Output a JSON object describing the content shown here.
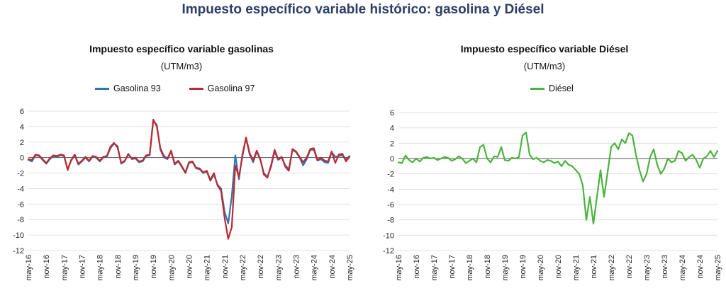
{
  "page": {
    "title": "Impuesto específico variable histórico: gasolina y Diésel"
  },
  "chart_data": [
    {
      "type": "line",
      "title": "Impuesto específico variable gasolinas",
      "subtitle": "(UTM/m3)",
      "ylim": [
        -12,
        6
      ],
      "yticks": [
        -12,
        -10,
        -8,
        -6,
        -4,
        -2,
        0,
        2,
        4,
        6
      ],
      "categories": [
        "may-16",
        "nov-16",
        "may-17",
        "nov-17",
        "may-18",
        "nov-18",
        "may-19",
        "nov-19",
        "may-20",
        "nov-20",
        "may-21",
        "nov-21",
        "may-22",
        "nov-22",
        "may-23",
        "nov-23",
        "may-24",
        "nov-24",
        "may-25"
      ],
      "legend_position": "top",
      "grid": true,
      "series": [
        {
          "name": "Gasolina 93",
          "color": "#2e75b6",
          "x": [
            0,
            0.2,
            0.4,
            0.6,
            0.8,
            1.0,
            1.2,
            1.4,
            1.6,
            1.8,
            2.0,
            2.2,
            2.4,
            2.6,
            2.8,
            3.0,
            3.2,
            3.4,
            3.6,
            3.8,
            4.0,
            4.2,
            4.4,
            4.6,
            4.8,
            5.0,
            5.2,
            5.4,
            5.6,
            5.8,
            6.0,
            6.2,
            6.4,
            6.6,
            6.8,
            7.0,
            7.2,
            7.4,
            7.6,
            7.8,
            8.0,
            8.2,
            8.4,
            8.6,
            8.8,
            9.0,
            9.2,
            9.4,
            9.6,
            9.8,
            10.0,
            10.2,
            10.4,
            10.6,
            10.8,
            11.0,
            11.2,
            11.4,
            11.6,
            11.8,
            12.0,
            12.2,
            12.4,
            12.6,
            12.8,
            13.0,
            13.2,
            13.4,
            13.6,
            13.8,
            14.0,
            14.2,
            14.4,
            14.6,
            14.8,
            15.0,
            15.2,
            15.4,
            15.6,
            15.8,
            16.0,
            16.2,
            16.4,
            16.6,
            16.8,
            17.0,
            17.2,
            17.4,
            17.6,
            17.8,
            18.0
          ],
          "values": [
            -0.3,
            -0.5,
            0.3,
            0.2,
            -0.3,
            -0.8,
            -0.2,
            0.2,
            0.1,
            0.3,
            0.2,
            -1.5,
            -0.4,
            0.3,
            -0.9,
            -0.5,
            0.0,
            -0.5,
            0.1,
            0.0,
            -0.5,
            0.0,
            0.1,
            1.2,
            1.8,
            1.5,
            -0.8,
            -0.5,
            0.5,
            -0.2,
            -0.1,
            -0.6,
            -0.5,
            0.2,
            0.3,
            4.8,
            4.2,
            1.0,
            0.0,
            -0.2,
            0.8,
            -0.9,
            -0.5,
            -1.2,
            -2.0,
            -0.7,
            -0.6,
            -1.4,
            -1.5,
            -2.0,
            -1.8,
            -3.0,
            -2.2,
            -3.5,
            -4.0,
            -7.0,
            -8.5,
            -5.0,
            0.3,
            -2.8,
            0.5,
            2.5,
            0.4,
            -0.6,
            0.8,
            -0.3,
            -2.0,
            -2.5,
            -1.2,
            0.8,
            -0.3,
            0.0,
            -1.0,
            -1.5,
            1.0,
            0.7,
            0.0,
            -1.0,
            -0.2,
            1.0,
            1.0,
            -0.4,
            -0.2,
            -0.6,
            -0.7,
            0.7,
            0.1,
            0.2,
            0.3,
            -0.2,
            0.2
          ]
        },
        {
          "name": "Gasolina 97",
          "color": "#c0292e",
          "x": [
            0,
            0.2,
            0.4,
            0.6,
            0.8,
            1.0,
            1.2,
            1.4,
            1.6,
            1.8,
            2.0,
            2.2,
            2.4,
            2.6,
            2.8,
            3.0,
            3.2,
            3.4,
            3.6,
            3.8,
            4.0,
            4.2,
            4.4,
            4.6,
            4.8,
            5.0,
            5.2,
            5.4,
            5.6,
            5.8,
            6.0,
            6.2,
            6.4,
            6.6,
            6.8,
            7.0,
            7.2,
            7.4,
            7.6,
            7.8,
            8.0,
            8.2,
            8.4,
            8.6,
            8.8,
            9.0,
            9.2,
            9.4,
            9.6,
            9.8,
            10.0,
            10.2,
            10.4,
            10.6,
            10.8,
            11.0,
            11.2,
            11.4,
            11.6,
            11.8,
            12.0,
            12.2,
            12.4,
            12.6,
            12.8,
            13.0,
            13.2,
            13.4,
            13.6,
            13.8,
            14.0,
            14.2,
            14.4,
            14.6,
            14.8,
            15.0,
            15.2,
            15.4,
            15.6,
            15.8,
            16.0,
            16.2,
            16.4,
            16.6,
            16.8,
            17.0,
            17.2,
            17.4,
            17.6,
            17.8,
            18.0
          ],
          "values": [
            -0.2,
            -0.3,
            0.4,
            0.3,
            -0.2,
            -0.7,
            -0.1,
            0.3,
            0.2,
            0.4,
            0.3,
            -1.6,
            -0.3,
            0.4,
            -0.8,
            -0.4,
            0.1,
            -0.4,
            0.2,
            0.1,
            -0.4,
            0.1,
            0.2,
            1.4,
            1.9,
            1.3,
            -0.7,
            -0.4,
            0.4,
            -0.1,
            0.0,
            -0.5,
            -0.4,
            0.3,
            0.4,
            4.9,
            4.0,
            1.2,
            0.2,
            -0.1,
            0.9,
            -0.8,
            -0.4,
            -1.1,
            -1.9,
            -0.6,
            -0.5,
            -1.3,
            -1.4,
            -1.9,
            -1.7,
            -2.9,
            -2.0,
            -3.6,
            -4.3,
            -7.8,
            -10.5,
            -9.0,
            -1.0,
            -2.5,
            0.2,
            2.6,
            0.6,
            -0.4,
            0.9,
            -0.2,
            -2.2,
            -2.6,
            -1.0,
            1.0,
            -0.2,
            0.1,
            -1.2,
            -1.7,
            1.1,
            0.8,
            0.1,
            -0.6,
            0.0,
            1.1,
            1.2,
            -0.3,
            0.0,
            -0.4,
            -0.5,
            0.8,
            -0.7,
            0.4,
            0.5,
            -0.5,
            0.1
          ]
        }
      ]
    },
    {
      "type": "line",
      "title": "Impuesto específico variable Diésel",
      "subtitle": "(UTM/m3)",
      "ylim": [
        -12,
        6
      ],
      "yticks": [
        -12,
        -10,
        -8,
        -6,
        -4,
        -2,
        0,
        2,
        4,
        6
      ],
      "categories": [
        "may-16",
        "nov-16",
        "may-17",
        "nov-17",
        "may-18",
        "nov-18",
        "may-19",
        "nov-19",
        "may-20",
        "nov-20",
        "may-21",
        "nov-21",
        "may-22",
        "nov-22",
        "may-23",
        "nov-23",
        "may-24",
        "nov-24",
        "may-25"
      ],
      "legend_position": "top",
      "grid": true,
      "series": [
        {
          "name": "Diésel",
          "color": "#4cb33e",
          "x": [
            0,
            0.2,
            0.4,
            0.6,
            0.8,
            1.0,
            1.2,
            1.4,
            1.6,
            1.8,
            2.0,
            2.2,
            2.4,
            2.6,
            2.8,
            3.0,
            3.2,
            3.4,
            3.6,
            3.8,
            4.0,
            4.2,
            4.4,
            4.6,
            4.8,
            5.0,
            5.2,
            5.4,
            5.6,
            5.8,
            6.0,
            6.2,
            6.4,
            6.6,
            6.8,
            7.0,
            7.2,
            7.4,
            7.6,
            7.8,
            8.0,
            8.2,
            8.4,
            8.6,
            8.8,
            9.0,
            9.2,
            9.4,
            9.6,
            9.8,
            10.0,
            10.2,
            10.4,
            10.6,
            10.8,
            11.0,
            11.2,
            11.4,
            11.6,
            11.8,
            12.0,
            12.2,
            12.4,
            12.6,
            12.8,
            13.0,
            13.2,
            13.4,
            13.6,
            13.8,
            14.0,
            14.2,
            14.4,
            14.6,
            14.8,
            15.0,
            15.2,
            15.4,
            15.6,
            15.8,
            16.0,
            16.2,
            16.4,
            16.6,
            16.8,
            17.0,
            17.2,
            17.4,
            17.6,
            17.8,
            18.0
          ],
          "values": [
            -0.5,
            -0.6,
            0.4,
            -0.2,
            -0.5,
            0.0,
            -0.4,
            0.1,
            0.2,
            0.0,
            0.1,
            -0.2,
            0.0,
            0.2,
            0.1,
            -0.3,
            -0.1,
            0.3,
            0.0,
            -0.6,
            -0.3,
            0.0,
            -0.5,
            1.5,
            1.8,
            0.0,
            -0.5,
            0.3,
            0.2,
            1.5,
            -0.2,
            -0.3,
            0.1,
            0.0,
            0.2,
            3.0,
            3.4,
            0.5,
            -0.1,
            0.1,
            -0.3,
            -0.5,
            -0.2,
            -0.3,
            -0.6,
            -0.4,
            -1.0,
            -0.3,
            -0.8,
            -1.0,
            -1.5,
            -2.0,
            -3.5,
            -8.0,
            -5.0,
            -8.5,
            -5.0,
            -1.5,
            -5.0,
            -1.8,
            1.5,
            2.0,
            1.2,
            2.5,
            2.0,
            3.3,
            3.0,
            0.5,
            -1.5,
            -3.0,
            -2.0,
            0.2,
            1.2,
            -0.8,
            -2.0,
            -1.3,
            0.0,
            -0.5,
            -0.3,
            1.0,
            0.7,
            -0.3,
            0.2,
            0.5,
            -0.2,
            -1.2,
            0.0,
            0.3,
            1.0,
            0.2,
            1.0
          ]
        }
      ]
    }
  ]
}
